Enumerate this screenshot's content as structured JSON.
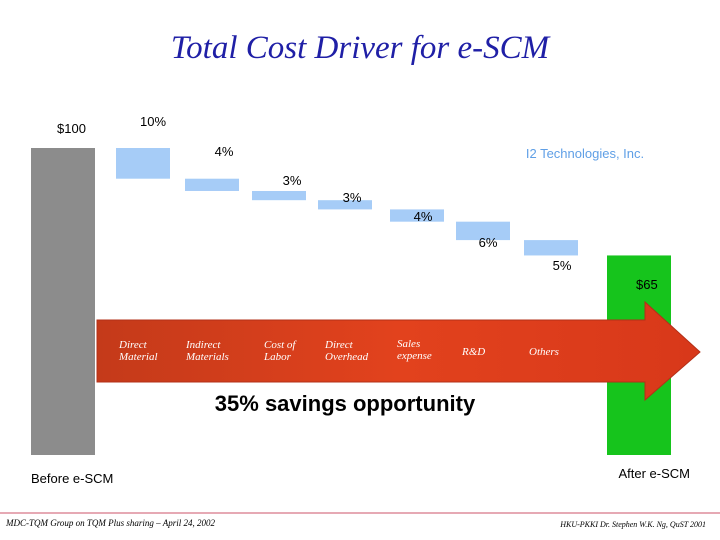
{
  "title": "Total Cost Driver for e-SCM",
  "company": "I2 Technologies, Inc.",
  "footer": {
    "left": "MDC-TQM Group on TQM Plus sharing – April 24, 2002",
    "right": "HKU-PKKI Dr. Stephen W.K. Ng, QuST 2001"
  },
  "chart_data": {
    "type": "waterfall",
    "start": {
      "label": "Before e-SCM",
      "value": 100,
      "value_label": "$100"
    },
    "end": {
      "label": "After e-SCM",
      "value": 65,
      "value_label": "$65"
    },
    "steps": [
      {
        "category": "Direct Material",
        "value": 10,
        "value_label": "10%"
      },
      {
        "category": "Indirect Materials",
        "value": 4,
        "value_label": "4%"
      },
      {
        "category": "Cost of Labor",
        "value": 3,
        "value_label": "3%"
      },
      {
        "category": "Direct Overhead",
        "value": 3,
        "value_label": "3%"
      },
      {
        "category": "Sales expense",
        "value": 4,
        "value_label": "4%"
      },
      {
        "category": "R&D",
        "value": 6,
        "value_label": "6%"
      },
      {
        "category": "Others",
        "value": 5,
        "value_label": "5%"
      }
    ],
    "arrow_label": "35% savings opportunity",
    "colors": {
      "start_bar": "#8c8c8c",
      "step_bar": "#a6ccf7",
      "end_bar": "#16c41c",
      "arrow": "#e0391b"
    }
  }
}
